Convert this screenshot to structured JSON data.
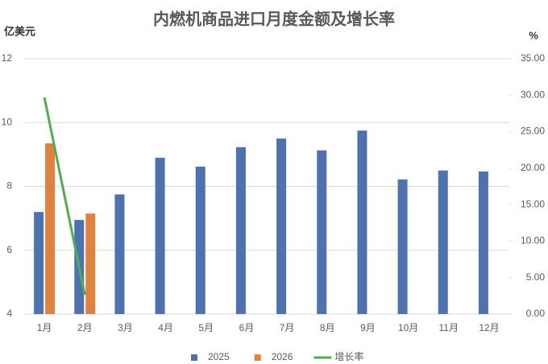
{
  "chart_data": {
    "type": "bar",
    "title": "内燃机商品进口月度金额及增长率",
    "y_label": "亿美元",
    "y2_label": "%",
    "categories": [
      "1月",
      "2月",
      "3月",
      "4月",
      "5月",
      "6月",
      "7月",
      "8月",
      "9月",
      "10月",
      "11月",
      "12月"
    ],
    "series": [
      {
        "name": "2025",
        "color": "#4e72b0",
        "values": [
          7.2,
          6.95,
          7.75,
          8.9,
          8.62,
          9.23,
          9.5,
          9.13,
          9.75,
          8.22,
          8.5,
          8.47
        ]
      },
      {
        "name": "2026",
        "color": "#e0823f",
        "values": [
          9.35,
          7.15,
          null,
          null,
          null,
          null,
          null,
          null,
          null,
          null,
          null,
          null
        ]
      },
      {
        "name": "增长率",
        "type": "line",
        "axis": "y2",
        "color": "#4caf50",
        "values": [
          29.7,
          2.65,
          null,
          null,
          null,
          null,
          null,
          null,
          null,
          null,
          null,
          null
        ]
      }
    ],
    "ylim": [
      4,
      12
    ],
    "yticks": [
      4,
      6,
      8,
      10,
      12
    ],
    "y2lim": [
      0,
      35
    ],
    "y2ticks": [
      {
        "value": 0,
        "label": "0.00"
      },
      {
        "value": 5,
        "label": "5.00"
      },
      {
        "value": 10,
        "label": "10.00"
      },
      {
        "value": 15,
        "label": "15.00"
      },
      {
        "value": 20,
        "label": "20.00"
      },
      {
        "value": 25,
        "label": "25.00"
      },
      {
        "value": 30,
        "label": "30.00"
      },
      {
        "value": 35,
        "label": "35.00"
      }
    ],
    "grid": true,
    "legend": "bottom"
  }
}
